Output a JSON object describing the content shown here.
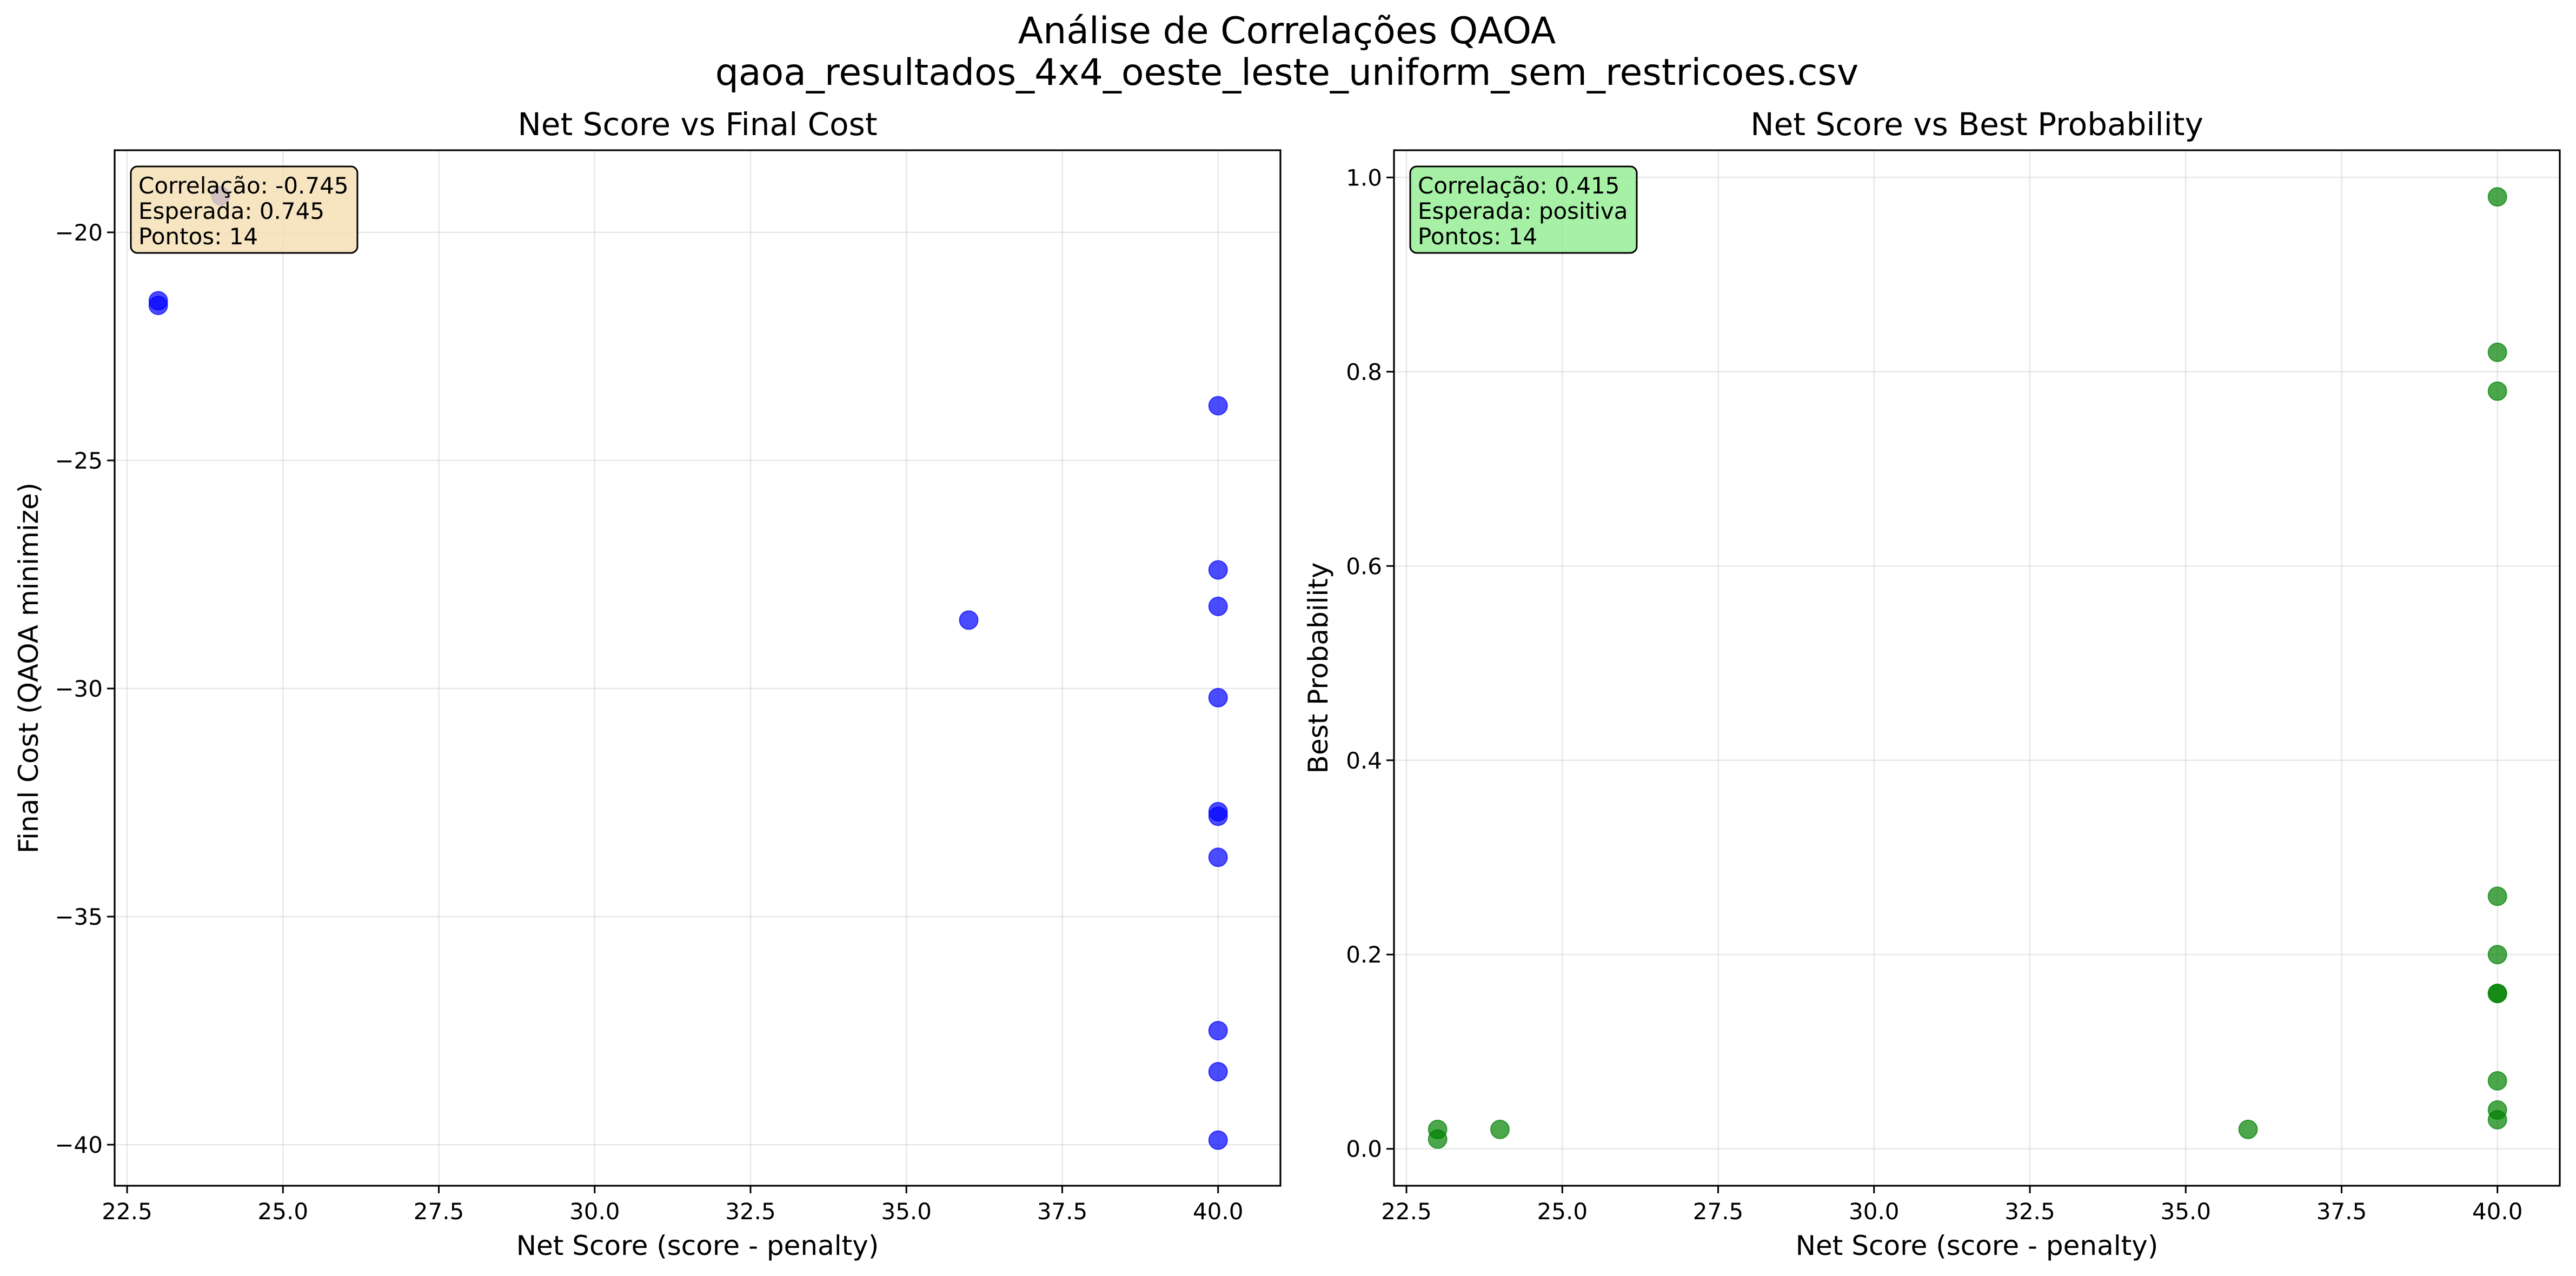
{
  "figure": {
    "title_line1": "Análise de Correlações QAOA",
    "title_line2": "qaoa_resultados_4x4_oeste_leste_uniform_sem_restricoes.csv"
  },
  "chart_data": [
    {
      "type": "scatter",
      "title": "Net Score vs Final Cost",
      "xlabel": "Net Score (score - penalty)",
      "ylabel": "Final Cost (QAOA minimize)",
      "xlim": [
        22.3,
        41.0
      ],
      "ylim": [
        -40.9,
        -18.2
      ],
      "xticks": [
        22.5,
        25.0,
        27.5,
        30.0,
        32.5,
        35.0,
        37.5,
        40.0
      ],
      "xtick_labels": [
        "22.5",
        "25.0",
        "27.5",
        "30.0",
        "32.5",
        "35.0",
        "37.5",
        "40.0"
      ],
      "yticks": [
        -40,
        -35,
        -30,
        -25,
        -20
      ],
      "ytick_labels": [
        "−40",
        "−35",
        "−30",
        "−25",
        "−20"
      ],
      "grid": true,
      "marker_color": "#0000ff",
      "points": [
        {
          "x": 23,
          "y": -21.5
        },
        {
          "x": 23,
          "y": -21.6
        },
        {
          "x": 24,
          "y": -19.2
        },
        {
          "x": 36,
          "y": -28.5
        },
        {
          "x": 40,
          "y": -23.8
        },
        {
          "x": 40,
          "y": -27.4
        },
        {
          "x": 40,
          "y": -28.2
        },
        {
          "x": 40,
          "y": -30.2
        },
        {
          "x": 40,
          "y": -32.7
        },
        {
          "x": 40,
          "y": -32.8
        },
        {
          "x": 40,
          "y": -33.7
        },
        {
          "x": 40,
          "y": -37.5
        },
        {
          "x": 40,
          "y": -38.4
        },
        {
          "x": 40,
          "y": -39.9
        }
      ],
      "annotation": {
        "lines": [
          "Correlação: -0.745",
          "Esperada: 0.745",
          "Pontos: 14"
        ],
        "box_color": "#f5deb3",
        "position": "top-left"
      }
    },
    {
      "type": "scatter",
      "title": "Net Score vs Best Probability",
      "xlabel": "Net Score (score - penalty)",
      "ylabel": "Best Probability",
      "xlim": [
        22.3,
        41.0
      ],
      "ylim": [
        -0.038,
        1.028
      ],
      "xticks": [
        22.5,
        25.0,
        27.5,
        30.0,
        32.5,
        35.0,
        37.5,
        40.0
      ],
      "xtick_labels": [
        "22.5",
        "25.0",
        "27.5",
        "30.0",
        "32.5",
        "35.0",
        "37.5",
        "40.0"
      ],
      "yticks": [
        0.0,
        0.2,
        0.4,
        0.6,
        0.8,
        1.0
      ],
      "ytick_labels": [
        "0.0",
        "0.2",
        "0.4",
        "0.6",
        "0.8",
        "1.0"
      ],
      "grid": true,
      "marker_color": "#008000",
      "points": [
        {
          "x": 23,
          "y": 0.02
        },
        {
          "x": 23,
          "y": 0.01
        },
        {
          "x": 24,
          "y": 0.02
        },
        {
          "x": 36,
          "y": 0.02
        },
        {
          "x": 40,
          "y": 0.98
        },
        {
          "x": 40,
          "y": 0.82
        },
        {
          "x": 40,
          "y": 0.78
        },
        {
          "x": 40,
          "y": 0.26
        },
        {
          "x": 40,
          "y": 0.2
        },
        {
          "x": 40,
          "y": 0.16
        },
        {
          "x": 40,
          "y": 0.16
        },
        {
          "x": 40,
          "y": 0.07
        },
        {
          "x": 40,
          "y": 0.04
        },
        {
          "x": 40,
          "y": 0.03
        }
      ],
      "annotation": {
        "lines": [
          "Correlação: 0.415",
          "Esperada: positiva",
          "Pontos: 14"
        ],
        "box_color": "#90ee90",
        "position": "top-left"
      }
    }
  ]
}
